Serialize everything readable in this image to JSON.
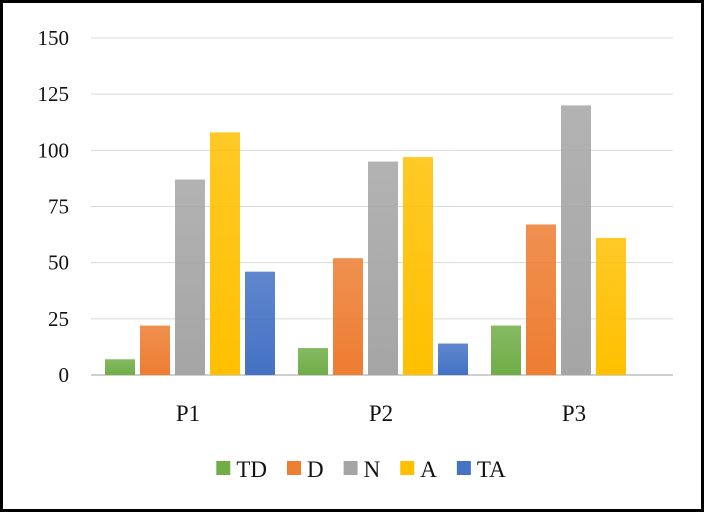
{
  "chart_data": {
    "type": "bar",
    "title": "",
    "xlabel": "",
    "ylabel": "",
    "categories": [
      "P1",
      "P2",
      "P3"
    ],
    "series": [
      {
        "name": "TD",
        "color": "#70ad47",
        "values": [
          7,
          12,
          22
        ]
      },
      {
        "name": "D",
        "color": "#ed7d31",
        "values": [
          22,
          52,
          67
        ]
      },
      {
        "name": "N",
        "color": "#a5a5a5",
        "values": [
          87,
          95,
          120
        ]
      },
      {
        "name": "A",
        "color": "#ffc000",
        "values": [
          108,
          97,
          61
        ]
      },
      {
        "name": "TA",
        "color": "#4472c4",
        "values": [
          46,
          14,
          0
        ]
      }
    ],
    "ylim": [
      0,
      150
    ],
    "yticks": [
      "0",
      "25",
      "50",
      "75",
      "100",
      "125",
      "150"
    ],
    "grid": true,
    "legend_position": "bottom"
  }
}
